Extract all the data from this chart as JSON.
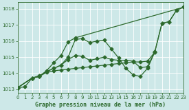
{
  "bg_color": "#cde8e8",
  "line_color": "#2d6a2d",
  "title": "Graphe pression niveau de la mer (hPa)",
  "xlim": [
    0,
    23
  ],
  "ylim": [
    1012.8,
    1018.4
  ],
  "yticks": [
    1013,
    1014,
    1015,
    1016,
    1017,
    1018
  ],
  "xticks": [
    0,
    1,
    2,
    3,
    4,
    5,
    6,
    7,
    8,
    9,
    10,
    11,
    12,
    13,
    14,
    15,
    16,
    17,
    18,
    19,
    20,
    21,
    22,
    23
  ],
  "lines": [
    {
      "x": [
        0,
        1,
        2,
        3,
        4,
        5,
        6,
        7,
        8,
        9,
        10,
        11,
        12,
        13,
        14,
        15,
        16,
        17,
        18,
        19,
        20,
        21,
        22
      ],
      "y": [
        1013.1,
        1013.15,
        1013.7,
        1013.8,
        1014.1,
        1014.3,
        1014.5,
        1015.0,
        1016.1,
        1016.15,
        1015.9,
        1016.0,
        1016.05,
        1015.5,
        1014.95,
        1014.3,
        1013.9,
        1013.8,
        1014.3,
        1015.3,
        1017.1,
        1017.2,
        1017.9
      ]
    },
    {
      "x": [
        0,
        2,
        3,
        4,
        5,
        6,
        7,
        8,
        9,
        10,
        11,
        12,
        13,
        14,
        15,
        16,
        17,
        18,
        19
      ],
      "y": [
        1013.1,
        1013.7,
        1013.85,
        1014.1,
        1014.3,
        1014.5,
        1014.85,
        1015.1,
        1015.05,
        1014.8,
        1014.9,
        1015.0,
        1014.85,
        1014.8,
        1014.8,
        1014.75,
        1014.35,
        1014.4,
        1015.35
      ]
    },
    {
      "x": [
        0,
        2,
        3,
        4,
        5,
        6,
        7,
        8,
        23
      ],
      "y": [
        1013.1,
        1013.7,
        1013.8,
        1014.15,
        1014.65,
        1015.1,
        1015.95,
        1016.2,
        1018.1
      ]
    },
    {
      "x": [
        0,
        2,
        3,
        4,
        5,
        6,
        7,
        8,
        9,
        10,
        11,
        12,
        13,
        14,
        15,
        16,
        17,
        18,
        19,
        20,
        21,
        22,
        23
      ],
      "y": [
        1013.1,
        1013.7,
        1013.8,
        1014.05,
        1014.15,
        1014.2,
        1014.25,
        1014.3,
        1014.35,
        1014.4,
        1014.45,
        1014.5,
        1014.55,
        1014.6,
        1014.65,
        1014.7,
        1014.7,
        1014.75,
        1015.3,
        1017.1,
        1017.2,
        1017.9,
        1018.1
      ]
    }
  ],
  "title_fontsize": 6.0,
  "tick_fontsize": 5.0,
  "marker_size": 2.5,
  "line_width": 0.9
}
